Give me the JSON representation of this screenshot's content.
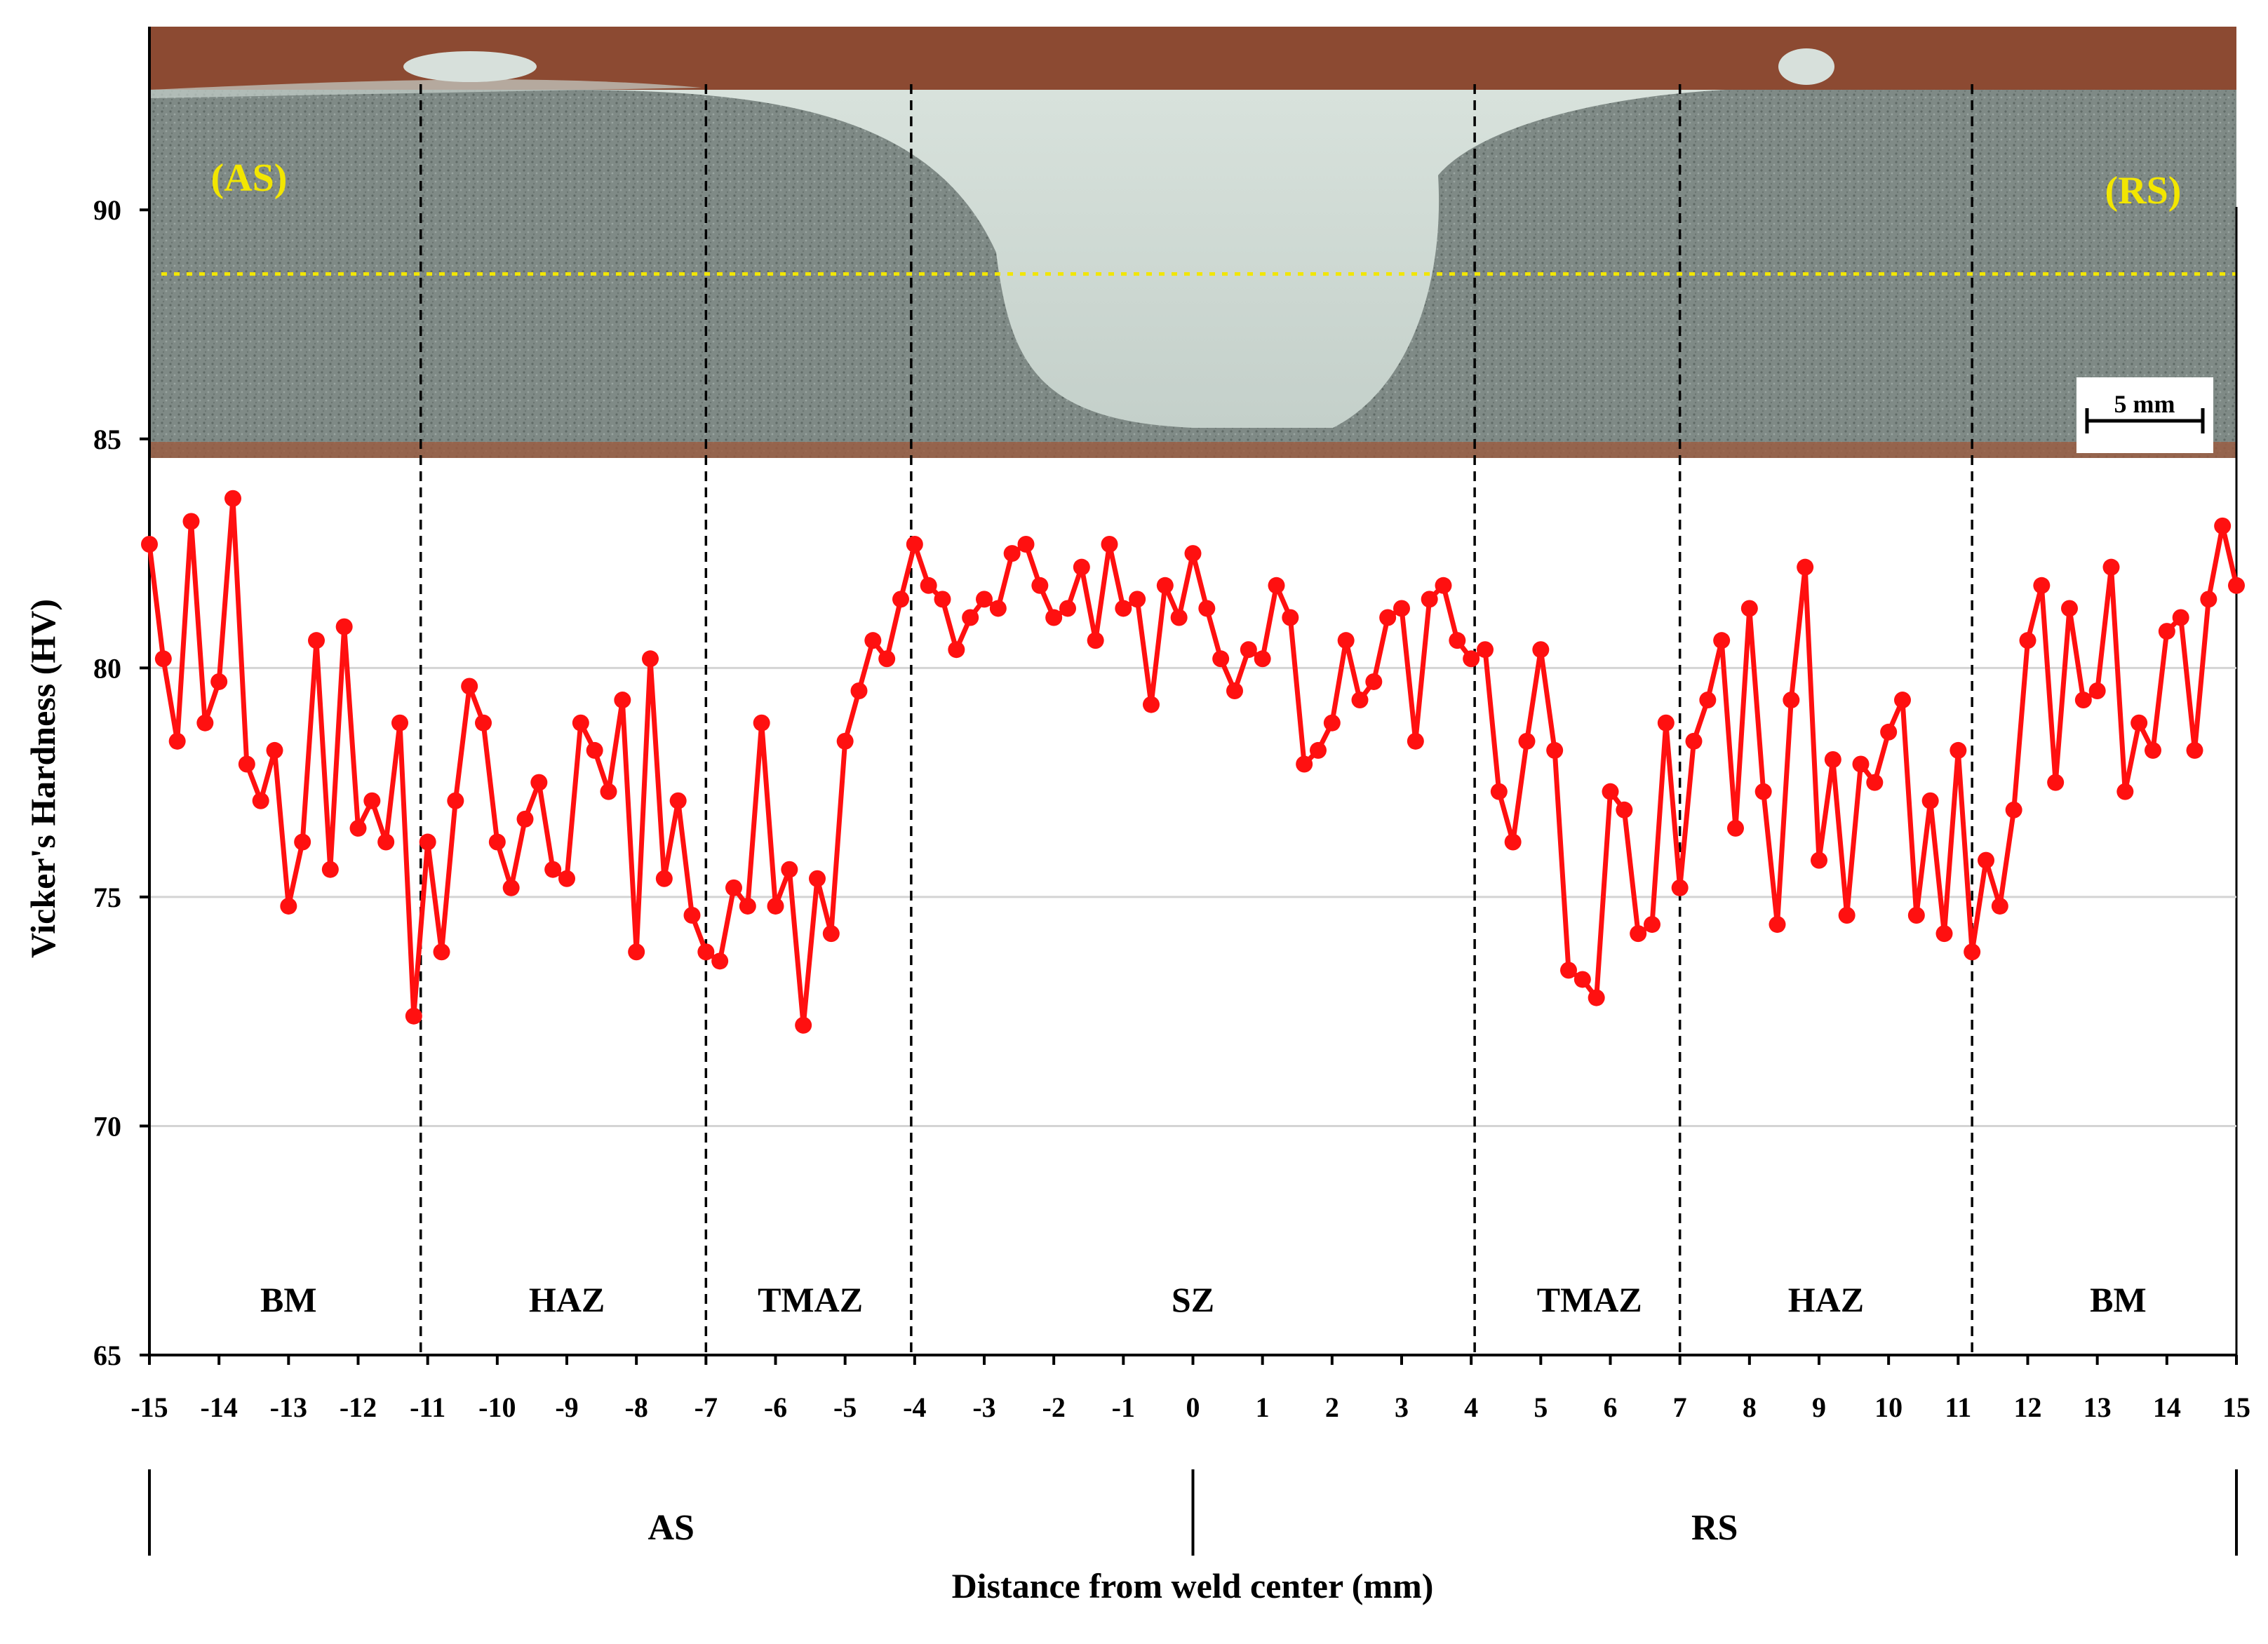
{
  "chart_data": {
    "type": "line",
    "xlabel": "Distance from weld center (mm)",
    "ylabel": "Vicker's Hardness (HV)",
    "xlim": [
      -15,
      15
    ],
    "ylim": [
      65,
      94
    ],
    "x_ticks": [
      -15,
      -14,
      -13,
      -12,
      -11,
      -10,
      -9,
      -8,
      -7,
      -6,
      -5,
      -4,
      -3,
      -2,
      -1,
      0,
      1,
      2,
      3,
      4,
      5,
      6,
      7,
      8,
      9,
      10,
      11,
      12,
      13,
      14,
      15
    ],
    "y_ticks": [
      65,
      70,
      75,
      80,
      85,
      90
    ],
    "grid": "horizontal",
    "line_color": "#ff1010",
    "zone_boundaries": [
      -11.1,
      -7,
      -4.05,
      4.05,
      7,
      11.2
    ],
    "zones": [
      {
        "label": "BM",
        "center": -13
      },
      {
        "label": "HAZ",
        "center": -9
      },
      {
        "label": "TMAZ",
        "center": -5.5
      },
      {
        "label": "SZ",
        "center": 0
      },
      {
        "label": "TMAZ",
        "center": 5.7
      },
      {
        "label": "HAZ",
        "center": 9.1
      },
      {
        "label": "BM",
        "center": 13.3
      }
    ],
    "sides": [
      {
        "label": "AS",
        "center": -7.5
      },
      {
        "label": "RS",
        "center": 7.5
      }
    ],
    "photo": {
      "labels": [
        "(AS)",
        "(RS)"
      ],
      "scale_bar": "5 mm",
      "measurement_line_y": 88.6
    },
    "series": [
      {
        "x": [
          -15.0,
          -14.8,
          -14.6,
          -14.4,
          -14.2,
          -14.0,
          -13.8,
          -13.6,
          -13.4,
          -13.2,
          -13.0,
          -12.8,
          -12.6,
          -12.4,
          -12.2,
          -12.0,
          -11.8,
          -11.6,
          -11.4,
          -11.2,
          -11.0,
          -10.8,
          -10.6,
          -10.4,
          -10.2,
          -10.0,
          -9.8,
          -9.6,
          -9.4,
          -9.2,
          -9.0,
          -8.8,
          -8.6,
          -8.4,
          -8.2,
          -8.0,
          -7.8,
          -7.6,
          -7.4,
          -7.2,
          -7.0,
          -6.8,
          -6.6,
          -6.4,
          -6.2,
          -6.0,
          -5.8,
          -5.6,
          -5.4,
          -5.2,
          -5.0,
          -4.8,
          -4.6,
          -4.4,
          -4.2,
          -4.0,
          -3.8,
          -3.6,
          -3.4,
          -3.2,
          -3.0,
          -2.8,
          -2.6,
          -2.4,
          -2.2,
          -2.0,
          -1.8,
          -1.6,
          -1.4,
          -1.2,
          -1.0,
          -0.8,
          -0.6,
          -0.4,
          -0.2,
          0.0,
          0.2,
          0.4,
          0.6,
          0.8,
          1.0,
          1.2,
          1.4,
          1.6,
          1.8,
          2.0,
          2.2,
          2.4,
          2.6,
          2.8,
          3.0,
          3.2,
          3.4,
          3.6,
          3.8,
          4.0,
          4.2,
          4.4,
          4.6,
          4.8,
          5.0,
          5.2,
          5.4,
          5.6,
          5.8,
          6.0,
          6.2,
          6.4,
          6.6,
          6.8,
          7.0,
          7.2,
          7.4,
          7.6,
          7.8,
          8.0,
          8.2,
          8.4,
          8.6,
          8.8,
          9.0,
          9.2,
          9.4,
          9.6,
          9.8,
          10.0,
          10.2,
          10.4,
          10.6,
          10.8,
          11.0,
          11.2,
          11.4,
          11.6,
          11.8,
          12.0,
          12.2,
          12.4,
          12.6,
          12.8,
          13.0,
          13.2,
          13.4,
          13.6,
          13.8,
          14.0,
          14.2,
          14.4,
          14.6,
          14.8,
          15.0
        ],
        "values": [
          82.7,
          80.2,
          78.4,
          83.2,
          78.8,
          79.7,
          83.7,
          77.9,
          77.1,
          78.2,
          74.8,
          76.2,
          80.6,
          75.6,
          80.9,
          76.5,
          77.1,
          76.2,
          78.8,
          72.4,
          76.2,
          73.8,
          77.1,
          79.6,
          78.8,
          76.2,
          75.2,
          76.7,
          77.5,
          75.6,
          75.4,
          78.8,
          78.2,
          77.3,
          79.3,
          73.8,
          80.2,
          75.4,
          77.1,
          74.6,
          73.8,
          73.6,
          75.2,
          74.8,
          78.8,
          74.8,
          75.6,
          72.2,
          75.4,
          74.2,
          78.4,
          79.5,
          80.6,
          80.2,
          81.5,
          82.7,
          81.8,
          81.5,
          80.4,
          81.1,
          81.5,
          81.3,
          82.5,
          82.7,
          81.8,
          81.1,
          81.3,
          82.2,
          80.6,
          82.7,
          81.3,
          81.5,
          79.2,
          81.8,
          81.1,
          82.5,
          81.3,
          80.2,
          79.5,
          80.4,
          80.2,
          81.8,
          81.1,
          77.9,
          78.2,
          78.8,
          80.6,
          79.3,
          79.7,
          81.1,
          81.3,
          78.4,
          81.5,
          81.8,
          80.6,
          80.2,
          80.4,
          77.3,
          76.2,
          78.4,
          80.4,
          78.2,
          73.4,
          73.2,
          72.8,
          77.3,
          76.9,
          74.2,
          74.4,
          78.8,
          75.2,
          78.4,
          79.3,
          80.6,
          76.5,
          81.3,
          77.3,
          74.4,
          79.3,
          82.2,
          75.8,
          78.0,
          74.6,
          77.9,
          77.5,
          78.6,
          79.3,
          74.6,
          77.1,
          74.2,
          78.2,
          73.8,
          75.8,
          74.8,
          76.9,
          80.6,
          81.8,
          77.5,
          81.3,
          79.3,
          79.5,
          82.2,
          77.3,
          78.8,
          78.2,
          80.8,
          81.1,
          78.2,
          81.5,
          83.1,
          81.8
        ]
      }
    ]
  }
}
